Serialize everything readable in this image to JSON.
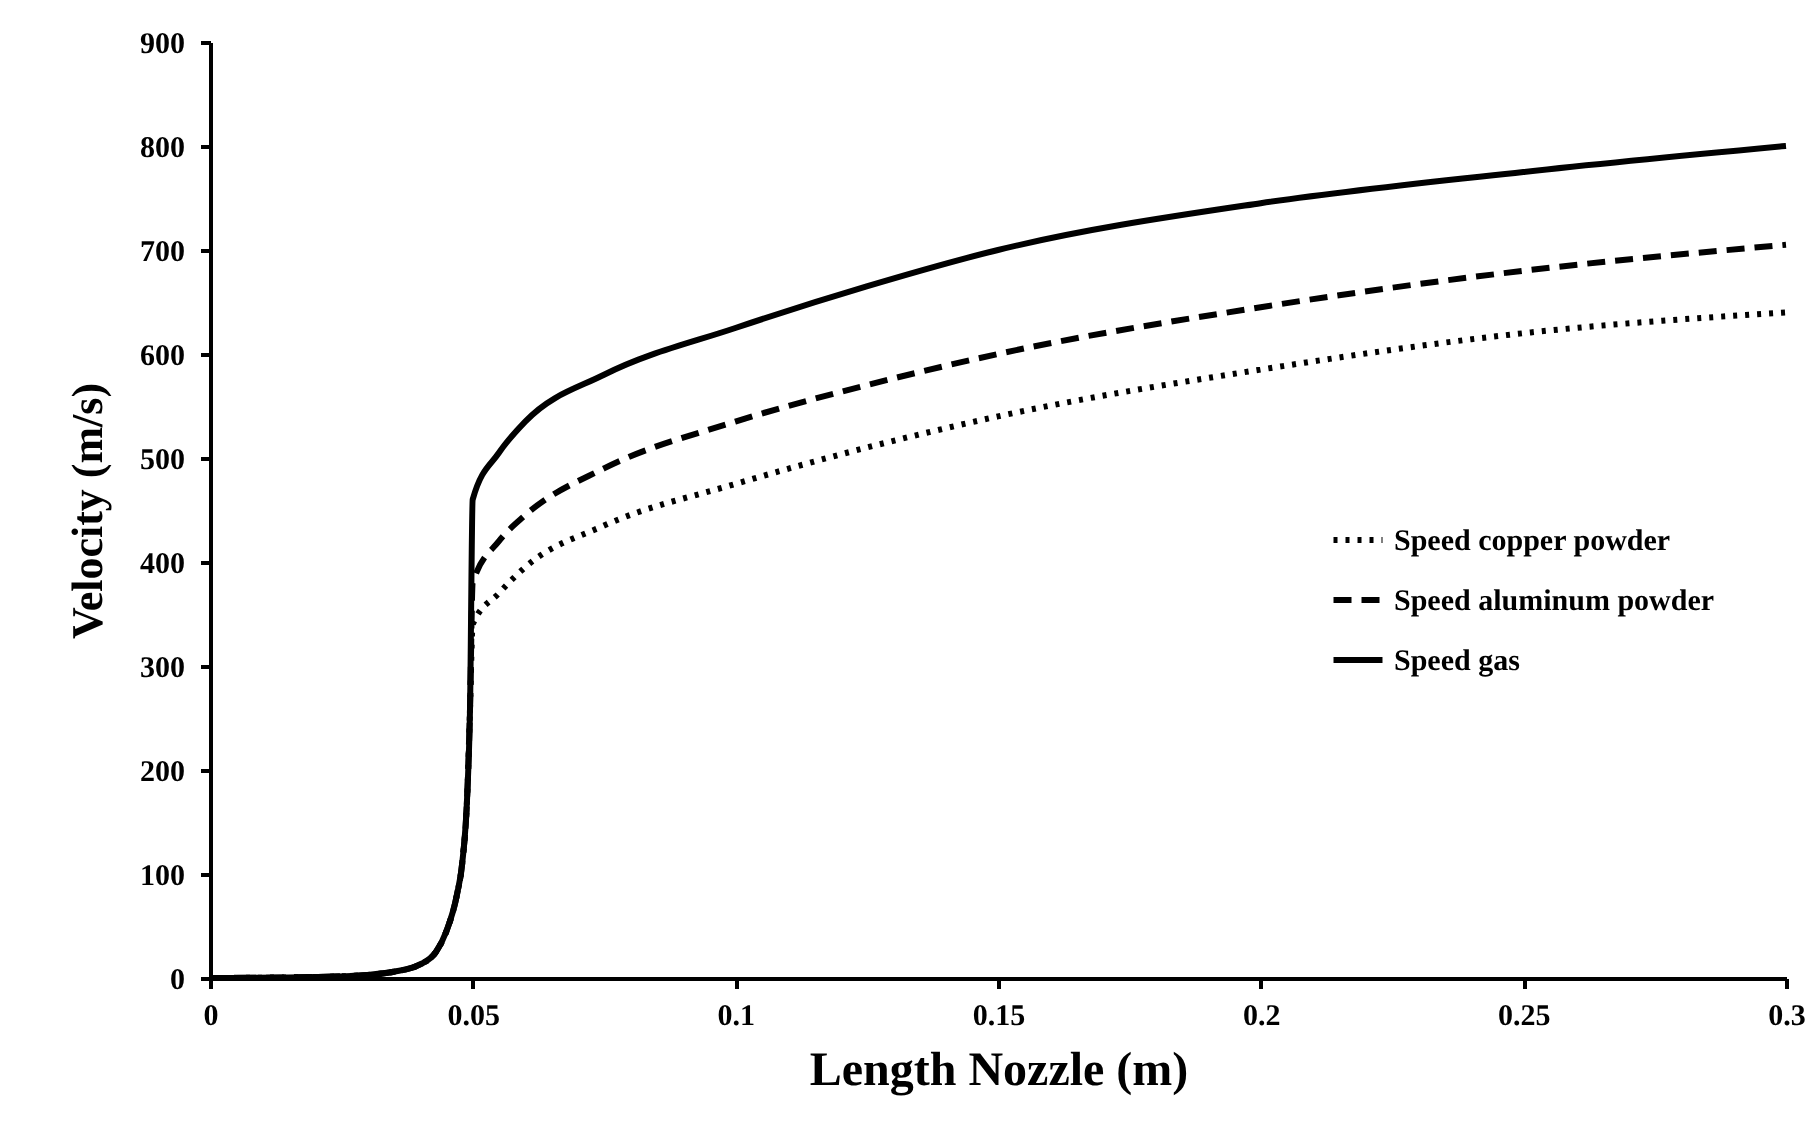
{
  "chart_data": {
    "type": "line",
    "xlabel": "Length Nozzle (m)",
    "ylabel": "Velocity (m/s)",
    "x": [
      0,
      0.02,
      0.03,
      0.035,
      0.04,
      0.043,
      0.045,
      0.047,
      0.048,
      0.049,
      0.0495,
      0.05,
      0.055,
      0.06,
      0.075,
      0.1,
      0.125,
      0.15,
      0.2,
      0.25,
      0.3
    ],
    "series": [
      {
        "name": "Speed copper powder",
        "color": "#000000",
        "line_style": "dotted",
        "values": [
          0,
          1,
          3,
          6,
          13,
          25,
          45,
          80,
          110,
          180,
          260,
          340,
          370,
          395,
          435,
          475,
          510,
          540,
          585,
          620,
          640
        ]
      },
      {
        "name": "Speed aluminum powder",
        "color": "#000000",
        "line_style": "dashed",
        "values": [
          0,
          1,
          3,
          6,
          13,
          25,
          45,
          80,
          110,
          180,
          260,
          380,
          420,
          445,
          490,
          535,
          570,
          600,
          645,
          680,
          705
        ]
      },
      {
        "name": "Speed gas",
        "color": "#000000",
        "line_style": "solid",
        "values": [
          0,
          1,
          3,
          6,
          13,
          25,
          45,
          80,
          110,
          180,
          260,
          460,
          505,
          535,
          580,
          625,
          665,
          700,
          745,
          775,
          800
        ]
      }
    ],
    "xlim": [
      0,
      0.3
    ],
    "xticks": [
      0,
      0.05,
      0.1,
      0.15,
      0.2,
      0.25,
      0.3
    ],
    "ylim": [
      0,
      900
    ],
    "yticks": [
      0,
      100,
      200,
      300,
      400,
      500,
      600,
      700,
      800,
      900
    ],
    "grid": false,
    "legend": "right"
  }
}
